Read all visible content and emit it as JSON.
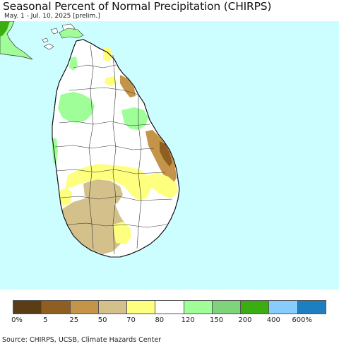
{
  "title": "Seasonal Percent of Normal Precipitation (CHIRPS)",
  "subtitle": "May. 1 - Jul. 10, 2025 [prelim.]",
  "source": "Source: CHIRPS, UCSB, Climate Hazards Center",
  "colors": {
    "ocean": "#ccfeff",
    "land_normal": "#ffffff",
    "boundary": "#333333"
  },
  "legend": {
    "colors": [
      "#5a3d14",
      "#8e5e22",
      "#c49448",
      "#d4c08a",
      "#feff7e",
      "#ffffff",
      "#9ffe98",
      "#7fd37a",
      "#3aae10",
      "#86ccfe",
      "#1d7fbf"
    ],
    "labels": [
      "0%",
      "5",
      "25",
      "50",
      "70",
      "80",
      "120",
      "150",
      "200",
      "400",
      "600%"
    ]
  }
}
